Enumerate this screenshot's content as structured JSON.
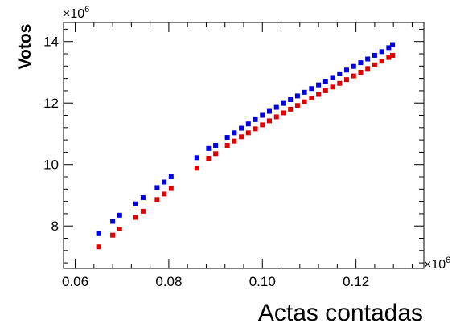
{
  "chart_data": {
    "type": "scatter",
    "title": "",
    "xlabel": "Actas contadas",
    "ylabel": "Votos",
    "x_multiplier_label": "×10",
    "x_multiplier_exp": "6",
    "y_multiplier_label": "×10",
    "y_multiplier_exp": "6",
    "xlim": [
      0.0575,
      0.1345
    ],
    "ylim": [
      6.62,
      14.62
    ],
    "x_ticks": [
      0.06,
      0.08,
      0.1,
      0.12
    ],
    "x_tick_labels": [
      "0.06",
      "0.08",
      "0.10",
      "0.12"
    ],
    "y_ticks": [
      8,
      10,
      12,
      14
    ],
    "y_tick_labels": [
      "8",
      "10",
      "12",
      "14"
    ],
    "grid": false,
    "legend": "none",
    "series": [
      {
        "color": "#0000e0",
        "marker": "square",
        "x": [
          0.065,
          0.068,
          0.0695,
          0.0728,
          0.0745,
          0.0775,
          0.079,
          0.0805,
          0.086,
          0.0885,
          0.09,
          0.0925,
          0.094,
          0.0955,
          0.097,
          0.0985,
          0.1,
          0.1015,
          0.103,
          0.1045,
          0.106,
          0.1075,
          0.109,
          0.1105,
          0.112,
          0.1135,
          0.115,
          0.1165,
          0.118,
          0.1195,
          0.121,
          0.1225,
          0.124,
          0.1255,
          0.127,
          0.1278
        ],
        "y": [
          7.75,
          8.15,
          8.35,
          8.72,
          8.92,
          9.25,
          9.43,
          9.6,
          10.22,
          10.52,
          10.62,
          10.88,
          11.03,
          11.18,
          11.32,
          11.46,
          11.6,
          11.73,
          11.86,
          11.99,
          12.11,
          12.23,
          12.35,
          12.47,
          12.59,
          12.71,
          12.83,
          12.95,
          13.07,
          13.19,
          13.31,
          13.43,
          13.55,
          13.67,
          13.8,
          13.9
        ]
      },
      {
        "color": "#e00000",
        "marker": "square",
        "x": [
          0.065,
          0.068,
          0.0695,
          0.0728,
          0.0745,
          0.0775,
          0.079,
          0.0805,
          0.086,
          0.0885,
          0.09,
          0.0925,
          0.094,
          0.0955,
          0.097,
          0.0985,
          0.1,
          0.1015,
          0.103,
          0.1045,
          0.106,
          0.1075,
          0.109,
          0.1105,
          0.112,
          0.1135,
          0.115,
          0.1165,
          0.118,
          0.1195,
          0.121,
          0.1225,
          0.124,
          0.1255,
          0.127,
          0.1278
        ],
        "y": [
          7.32,
          7.7,
          7.9,
          8.28,
          8.48,
          8.86,
          9.04,
          9.22,
          9.88,
          10.2,
          10.35,
          10.62,
          10.76,
          10.9,
          11.03,
          11.16,
          11.29,
          11.42,
          11.55,
          11.68,
          11.8,
          11.92,
          12.04,
          12.16,
          12.28,
          12.4,
          12.52,
          12.64,
          12.76,
          12.88,
          13.0,
          13.12,
          13.24,
          13.36,
          13.48,
          13.55
        ]
      }
    ]
  }
}
